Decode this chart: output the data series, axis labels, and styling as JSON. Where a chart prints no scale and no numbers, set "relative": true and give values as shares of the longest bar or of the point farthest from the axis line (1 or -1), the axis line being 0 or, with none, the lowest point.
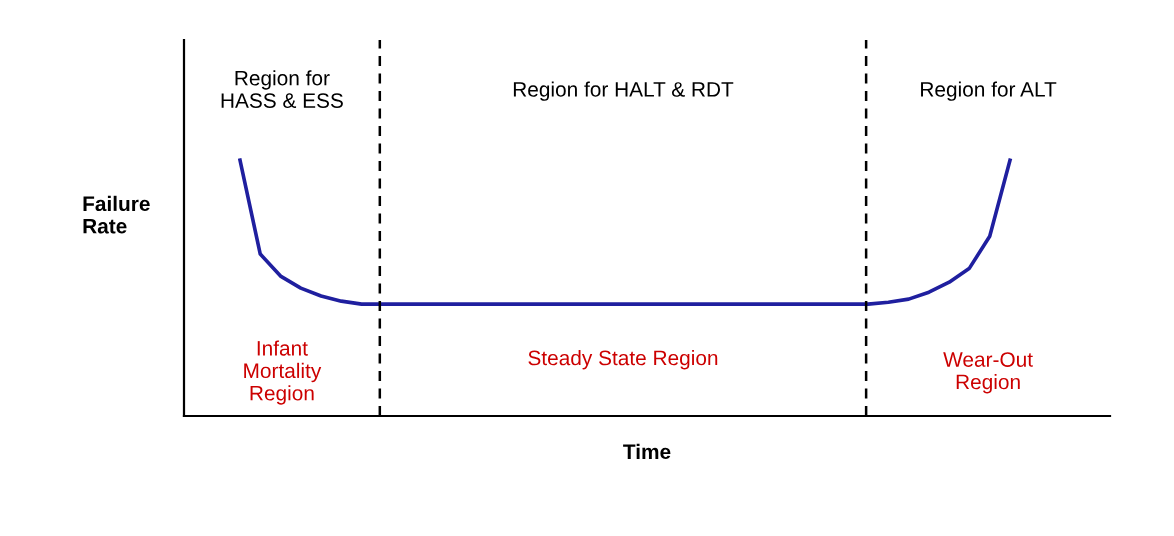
{
  "chart_data": {
    "type": "line",
    "relative": true,
    "xlabel": "Time",
    "ylabel": "Failure\nRate",
    "categories": [
      null,
      null,
      null,
      null,
      null,
      null,
      null,
      null,
      null,
      null,
      null,
      null,
      null,
      null,
      null,
      null,
      null,
      null,
      null,
      null,
      null,
      null,
      null,
      null,
      null,
      null,
      null,
      null,
      null,
      null,
      null,
      null,
      null,
      null,
      null,
      null,
      null,
      null,
      null
    ],
    "marker": "none",
    "line_style": "solid",
    "series": [
      {
        "color": "#1f1f9f",
        "values": [
          1,
          0.633,
          0.547,
          0.5,
          0.469,
          0.449,
          0.4375,
          0.4375,
          0.4375,
          0.4375,
          0.4375,
          0.4375,
          0.4375,
          0.4375,
          0.4375,
          0.4375,
          0.4375,
          0.4375,
          0.4375,
          0.4375,
          0.4375,
          0.4375,
          0.4375,
          0.4375,
          0.4375,
          0.4375,
          0.4375,
          0.4375,
          0.4375,
          0.4375,
          0.4375,
          0.4375,
          0.445,
          0.457,
          0.484,
          0.523,
          0.578,
          0.703,
          1
        ]
      }
    ],
    "annotations": [
      "Region for\nHASS & ESS",
      "Region for HALT & RDT",
      "Region for ALT",
      "Infant\nMortality\nRegion",
      "Steady State Region",
      "Wear-Out\nRegion"
    ]
  }
}
